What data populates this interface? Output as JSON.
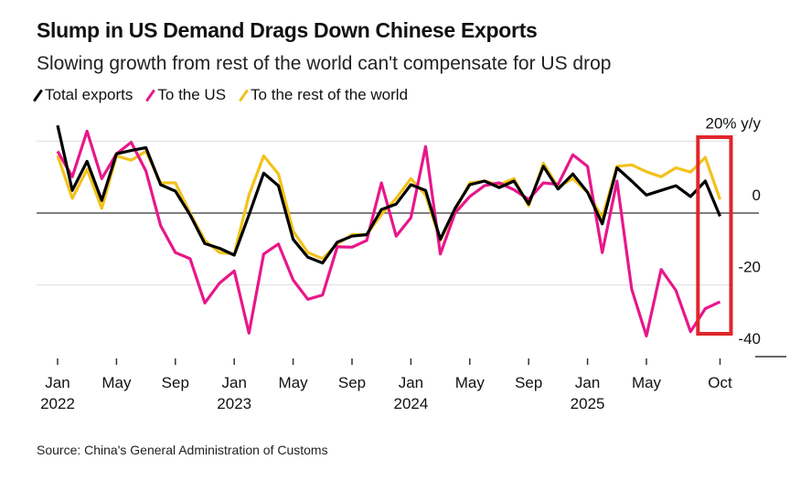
{
  "title": "Slump in US Demand Drags Down Chinese Exports",
  "subtitle": "Slowing growth from rest of the world can't compensate for US drop",
  "source": "Source: China's General Administration of Customs",
  "chart_data": {
    "type": "line",
    "x_start": "2022-01",
    "x_end": "2025-10",
    "frequency": "monthly",
    "ylim": [
      -40,
      20
    ],
    "yticks": [
      {
        "v": 20,
        "label": "20% y/y"
      },
      {
        "v": 0,
        "label": "0"
      },
      {
        "v": -20,
        "label": "-20"
      },
      {
        "v": -40,
        "label": "-40"
      }
    ],
    "xticks": [
      {
        "m": 0,
        "label": "Jan",
        "year": "2022"
      },
      {
        "m": 4,
        "label": "May"
      },
      {
        "m": 8,
        "label": "Sep"
      },
      {
        "m": 12,
        "label": "Jan",
        "year": "2023"
      },
      {
        "m": 16,
        "label": "May"
      },
      {
        "m": 20,
        "label": "Sep"
      },
      {
        "m": 24,
        "label": "Jan",
        "year": "2024"
      },
      {
        "m": 28,
        "label": "May"
      },
      {
        "m": 32,
        "label": "Sep"
      },
      {
        "m": 36,
        "label": "Jan",
        "year": "2025"
      },
      {
        "m": 40,
        "label": "May"
      },
      {
        "m": 45,
        "label": "Oct"
      }
    ],
    "grid": true,
    "legend_placement": "top-left",
    "highlight": {
      "from": "2025-08",
      "to": "2025-10",
      "color": "#e0252b"
    },
    "series": [
      {
        "name": "To the rest of the world",
        "color": "#f2c21b",
        "values": [
          16,
          4.1,
          12.2,
          1.3,
          15.9,
          14.7,
          17.2,
          8.4,
          8.4,
          0,
          -7.6,
          -11,
          -11.4,
          5,
          15.9,
          10.9,
          -5,
          -11,
          -12.7,
          -8.6,
          -6,
          -6,
          -0.4,
          4.1,
          9.6,
          5,
          -7.6,
          0.8,
          8.4,
          8.9,
          7.9,
          9.6,
          2,
          13.9,
          7.2,
          9.6,
          5.8,
          -1.3,
          13,
          13.4,
          11.5,
          10.1,
          12.6,
          11.4,
          15.5,
          3.8
        ]
      },
      {
        "name": "To the US",
        "color": "#e8178a",
        "values": [
          17.2,
          10.1,
          22.8,
          9.6,
          16.5,
          19.7,
          11.7,
          -3.5,
          -11,
          -12.7,
          -25,
          -19.5,
          -16.1,
          -33.4,
          -11.4,
          -8.6,
          -18.6,
          -24,
          -22.8,
          -9.4,
          -9.5,
          -7.6,
          8.4,
          -6.4,
          -1.3,
          18.5,
          -11.4,
          0,
          4.6,
          7.6,
          8.4,
          6.5,
          3.8,
          8.4,
          8,
          16.2,
          13,
          -11,
          8.9,
          -21.2,
          -34.2,
          -15.7,
          -21.5,
          -33,
          -26.6,
          -24.7
        ]
      },
      {
        "name": "Total exports",
        "color": "#000000",
        "values": [
          24.4,
          6.3,
          14.4,
          3.5,
          16.5,
          17.4,
          18.2,
          7.9,
          6.1,
          -0.5,
          -8.5,
          -9.8,
          -11.7,
          -0.5,
          11.1,
          7.6,
          -7.3,
          -12.3,
          -13.9,
          -8.1,
          -6.4,
          -6,
          1,
          2.5,
          7.9,
          6.3,
          -7.3,
          1.3,
          7.9,
          8.9,
          7.1,
          8.9,
          2.5,
          13,
          6.7,
          10.9,
          5.8,
          -3,
          12.6,
          8.9,
          5,
          6.3,
          7.6,
          4.6,
          8.9,
          -0.9
        ]
      }
    ]
  }
}
